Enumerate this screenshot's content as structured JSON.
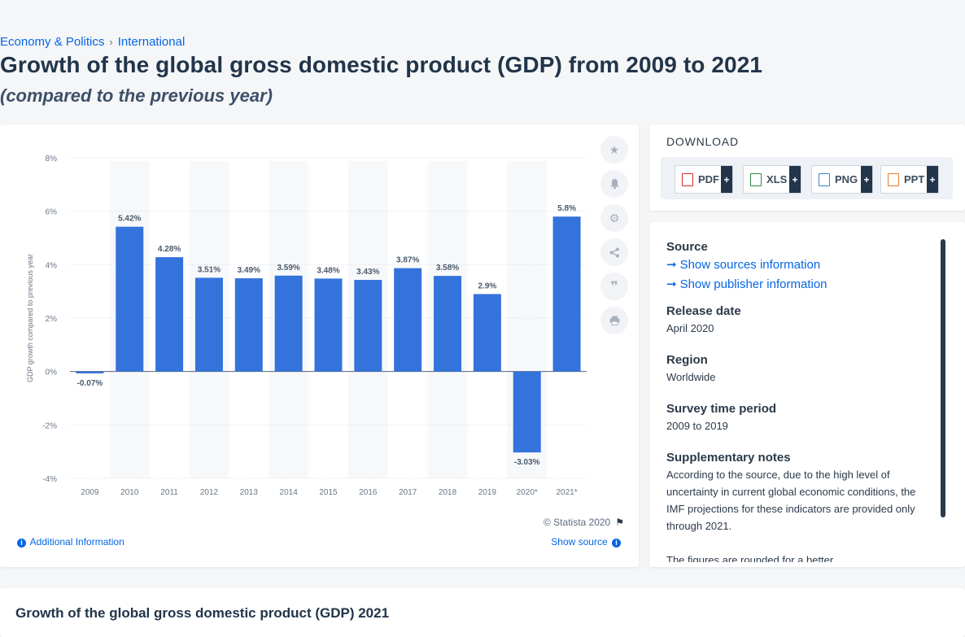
{
  "breadcrumb": [
    "Economy & Politics",
    "International"
  ],
  "title": "Growth of the global gross domestic product (GDP) from 2009 to 2021",
  "subtitle": "(compared to the previous year)",
  "colors": {
    "bar": "#3473dc",
    "link": "#0666e5",
    "bar_label": "#495a6c"
  },
  "chart_data": {
    "type": "bar",
    "categories": [
      "2009",
      "2010",
      "2011",
      "2012",
      "2013",
      "2014",
      "2015",
      "2016",
      "2017",
      "2018",
      "2019",
      "2020*",
      "2021*"
    ],
    "values": [
      -0.07,
      5.42,
      4.28,
      3.51,
      3.49,
      3.59,
      3.48,
      3.43,
      3.87,
      3.58,
      2.9,
      -3.03,
      5.8
    ],
    "data_labels": [
      "-0.07%",
      "5.42%",
      "4.28%",
      "3.51%",
      "3.49%",
      "3.59%",
      "3.48%",
      "3.43%",
      "3.87%",
      "3.58%",
      "2.9%",
      "-3.03%",
      "5.8%"
    ],
    "ylabel": "GDP growth compared to previous year",
    "xlabel": "",
    "ylim": [
      -4,
      8
    ],
    "yticks": [
      -4,
      -2,
      0,
      2,
      4,
      6,
      8
    ],
    "ytick_labels": [
      "-4%",
      "-2%",
      "0%",
      "2%",
      "4%",
      "6%",
      "8%"
    ],
    "grid": true
  },
  "copyright": "© Statista 2020",
  "additional_info": "Additional Information",
  "show_source": "Show source",
  "toolbar_icons": [
    "star-icon",
    "bell-icon",
    "gear-icon",
    "share-icon",
    "quote-icon",
    "print-icon"
  ],
  "download": {
    "title": "DOWNLOAD",
    "buttons": [
      {
        "label": "PDF",
        "color": "#d7282f"
      },
      {
        "label": "XLS",
        "color": "#2e8b3d"
      },
      {
        "label": "PNG",
        "color": "#3b84c8"
      },
      {
        "label": "PPT",
        "color": "#e07a2d"
      }
    ],
    "plus": "+"
  },
  "meta": {
    "source_label": "Source",
    "show_sources": "Show sources information",
    "show_publisher": "Show publisher information",
    "release_label": "Release date",
    "release_value": "April 2020",
    "region_label": "Region",
    "region_value": "Worldwide",
    "period_label": "Survey time period",
    "period_value": "2009 to 2019",
    "notes_label": "Supplementary notes",
    "notes_value": "According to the source, due to the high level of uncertainty in current global economic conditions, the IMF projections for these indicators are provided only through 2021.",
    "notes_more": "The figures are rounded for a better"
  },
  "bottom_title": "Growth of the global gross domestic product (GDP) 2021"
}
